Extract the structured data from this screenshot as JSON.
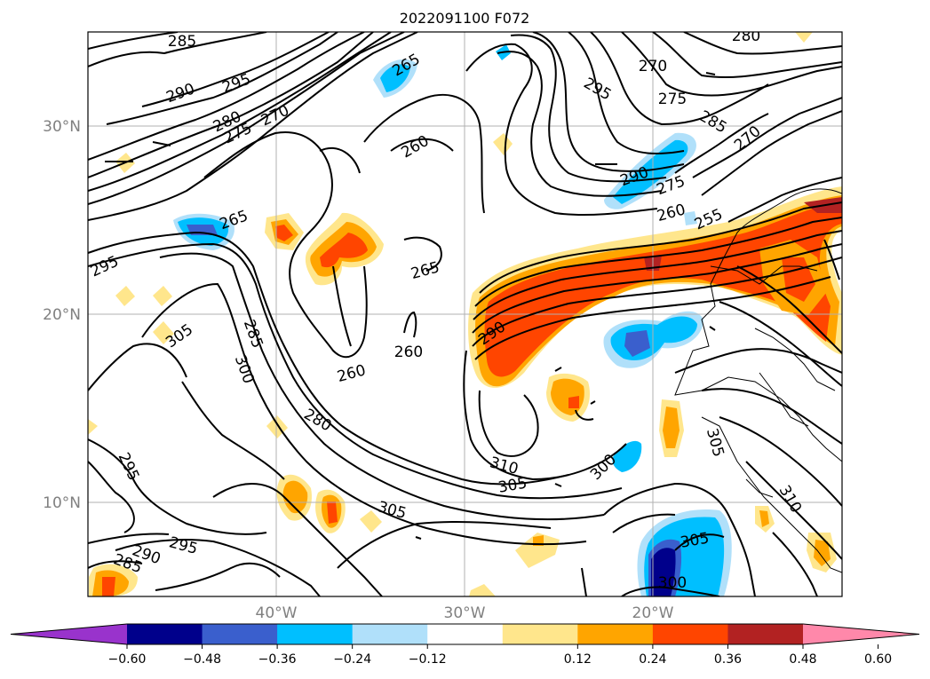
{
  "title": "2022091100 F072",
  "lat_labels": [
    "30°N",
    "20°N",
    "10°N"
  ],
  "lon_labels": [
    "40°W",
    "30°W",
    "20°W"
  ],
  "contour_labels": [
    "285",
    "290",
    "295",
    "280",
    "270",
    "275",
    "265",
    "260",
    "270",
    "295",
    "285",
    "275",
    "290",
    "275",
    "260",
    "255",
    "265",
    "265",
    "295",
    "305",
    "285",
    "300",
    "260",
    "260",
    "290",
    "280",
    "295",
    "310",
    "305",
    "300",
    "305",
    "295",
    "290",
    "285",
    "305",
    "300",
    "310",
    "305",
    "280",
    "270"
  ],
  "colorbar": {
    "ticks": [
      "−0.60",
      "−0.48",
      "−0.36",
      "−0.24",
      "−0.12",
      "0.12",
      "0.24",
      "0.36",
      "0.48",
      "0.60"
    ],
    "colors": [
      "#9933cc",
      "#00008b",
      "#3a5fcd",
      "#00bfff",
      "#b0e0fa",
      "#ffffff",
      "#ffe68c",
      "#ffa500",
      "#ff4500",
      "#b22222",
      "#ff88aa"
    ]
  },
  "fill_colors": {
    "light_blue": "#b0e0fa",
    "blue": "#00bfff",
    "mid_blue": "#3a5fcd",
    "navy": "#00008b",
    "yellow": "#ffe68c",
    "orange": "#ffa500",
    "red_orange": "#ff4500"
  }
}
